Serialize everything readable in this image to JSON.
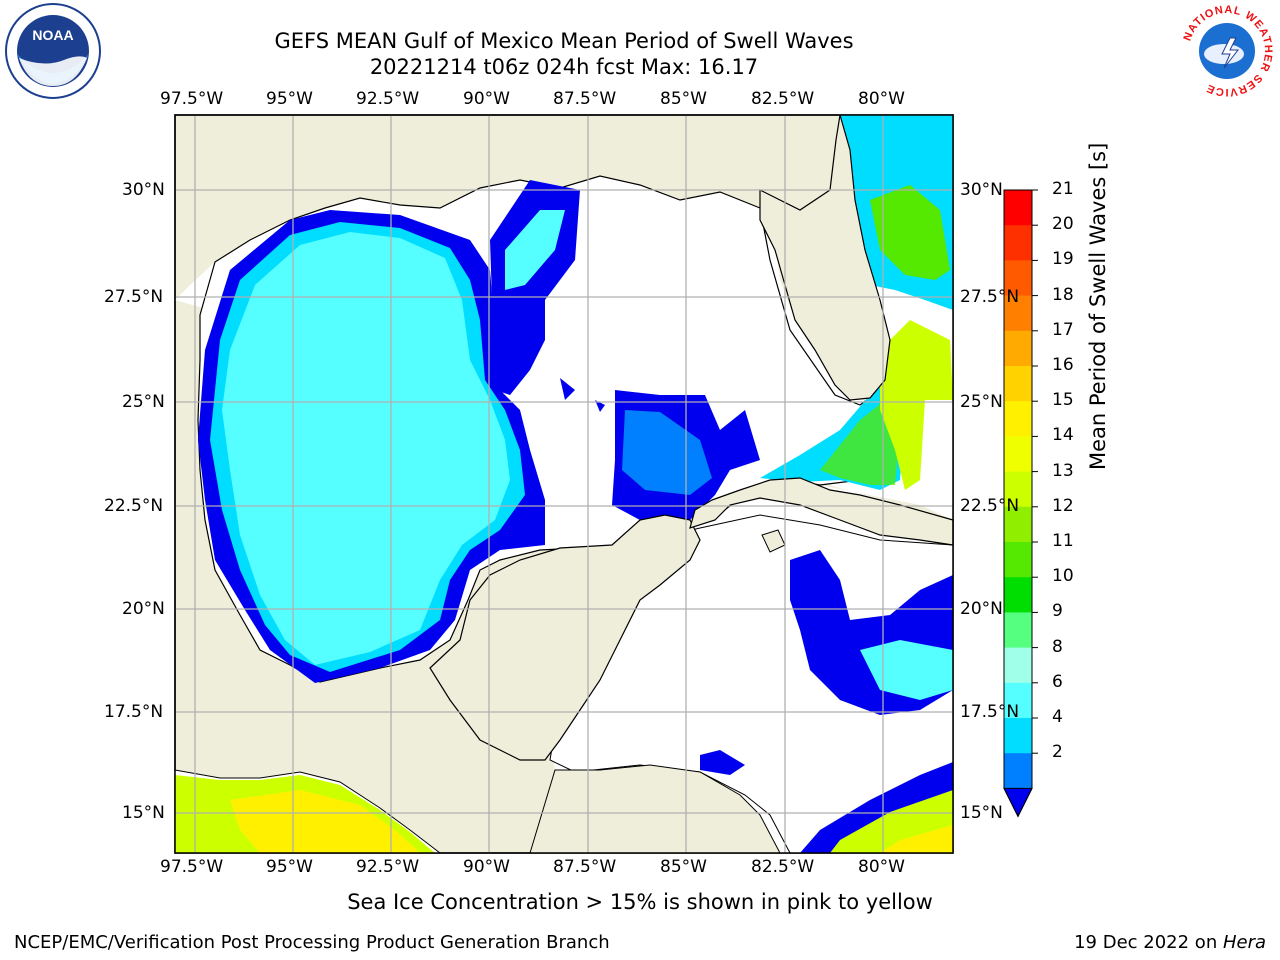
{
  "title_line1": "GEFS MEAN Gulf of Mexico Mean Period of Swell Waves",
  "title_line2": "20221214 t06z 024h fcst   Max: 16.17",
  "lon_labels": [
    "97.5°W",
    "95°W",
    "92.5°W",
    "90°W",
    "87.5°W",
    "85°W",
    "82.5°W",
    "80°W"
  ],
  "lat_labels": [
    "30°N",
    "27.5°N",
    "25°N",
    "22.5°N",
    "20°N",
    "17.5°N",
    "15°N"
  ],
  "colorbar": {
    "label": "Mean Period of Swell Waves [s]",
    "ticks": [
      "21",
      "20",
      "19",
      "18",
      "17",
      "16",
      "15",
      "14",
      "13",
      "12",
      "11",
      "10",
      "9",
      "8",
      "6",
      "4",
      "2"
    ],
    "colors": [
      "#ff0000",
      "#ff3000",
      "#ff5a00",
      "#ff8000",
      "#ffaa00",
      "#ffd200",
      "#fff000",
      "#f0ff00",
      "#ccff00",
      "#90ee00",
      "#55e800",
      "#00dd00",
      "#55ff80",
      "#a0ffe8",
      "#55ffff",
      "#00ddff",
      "#0080ff"
    ],
    "extend_color": "#0000ee"
  },
  "colors": {
    "land": "#efeedb",
    "ocean": "#ffffff",
    "grid": "#b0b0b0"
  },
  "footer_note": "Sea Ice Concentration > 15% is shown in pink to yellow",
  "credit": "NCEP/EMC/Verification Post Processing Product Generation Branch",
  "date_text": "19 Dec 2022 on ",
  "date_machine": "Hera",
  "logos": {
    "noaa": "NOAA",
    "nws_ring": "NATIONAL WEATHER SERVICE"
  }
}
